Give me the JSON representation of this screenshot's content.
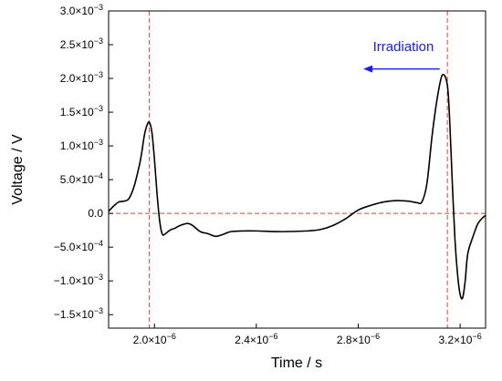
{
  "chart_data": {
    "type": "line",
    "xlabel": "Time / s",
    "ylabel": "Voltage / V",
    "xlim": [
      1.82e-06,
      3.3e-06
    ],
    "ylim": [
      -0.0017,
      0.003
    ],
    "x_ticks": [
      {
        "value": 2e-06,
        "mantissa": "2.0",
        "exponent": "−6"
      },
      {
        "value": 2.4e-06,
        "mantissa": "2.4",
        "exponent": "−6"
      },
      {
        "value": 2.8e-06,
        "mantissa": "2.8",
        "exponent": "−6"
      },
      {
        "value": 3.2e-06,
        "mantissa": "3.2",
        "exponent": "−6"
      }
    ],
    "y_ticks": [
      {
        "value": 0.003,
        "mantissa": "3.0",
        "exponent": "−3"
      },
      {
        "value": 0.0025,
        "mantissa": "2.5",
        "exponent": "−3"
      },
      {
        "value": 0.002,
        "mantissa": "2.0",
        "exponent": "−3"
      },
      {
        "value": 0.0015,
        "mantissa": "1.5",
        "exponent": "−3"
      },
      {
        "value": 0.001,
        "mantissa": "1.0",
        "exponent": "−3"
      },
      {
        "value": 0.0005,
        "mantissa": "5.0",
        "exponent": "−4"
      },
      {
        "value": 0,
        "mantissa": "0.0",
        "exponent": ""
      },
      {
        "value": -0.0005,
        "mantissa": "−5.0",
        "exponent": "−4"
      },
      {
        "value": -0.001,
        "mantissa": "−1.0",
        "exponent": "−3"
      },
      {
        "value": -0.0015,
        "mantissa": "−1.5",
        "exponent": "−3"
      }
    ],
    "reference_lines": {
      "vertical": [
        1.98e-06,
        3.15e-06
      ],
      "horizontal": [
        0
      ],
      "color": "#e03c3c",
      "style": "dashed"
    },
    "annotation": {
      "text": "Irradiation",
      "color": "#1a1aff",
      "arrow_direction": "left",
      "arrow_from": {
        "x": 3.12e-06,
        "y": 0.00214
      },
      "arrow_to": {
        "x": 2.82e-06,
        "y": 0.00214
      },
      "text_anchor": {
        "x": 2.87e-06,
        "y": 0.00247
      }
    },
    "grid": false,
    "series": [
      {
        "color": "#000000",
        "x": [
          1.82e-06,
          1.84e-06,
          1.86e-06,
          1.88e-06,
          1.9e-06,
          1.92e-06,
          1.94e-06,
          1.95e-06,
          1.96e-06,
          1.97e-06,
          1.98e-06,
          1.99e-06,
          2e-06,
          2.01e-06,
          2.02e-06,
          2.03e-06,
          2.04e-06,
          2.06e-06,
          2.08e-06,
          2.1e-06,
          2.13e-06,
          2.15e-06,
          2.18e-06,
          2.21e-06,
          2.24e-06,
          2.27e-06,
          2.3e-06,
          2.35e-06,
          2.4e-06,
          2.5e-06,
          2.6e-06,
          2.65e-06,
          2.7e-06,
          2.75e-06,
          2.8e-06,
          2.85e-06,
          2.9e-06,
          2.95e-06,
          3e-06,
          3.03e-06,
          3.05e-06,
          3.07e-06,
          3.09e-06,
          3.11e-06,
          3.13e-06,
          3.15e-06,
          3.16e-06,
          3.17e-06,
          3.18e-06,
          3.19e-06,
          3.2e-06,
          3.21e-06,
          3.22e-06,
          3.23e-06,
          3.25e-06,
          3.27e-06,
          3.29e-06,
          3.3e-06
        ],
        "y": [
          3e-05,
          0.00011,
          0.00017,
          0.00018,
          0.00022,
          0.0004,
          0.0007,
          0.0009,
          0.00115,
          0.0013,
          0.00135,
          0.0012,
          0.0008,
          0.0003,
          -0.0001,
          -0.0003,
          -0.00031,
          -0.00025,
          -0.00022,
          -0.00018,
          -0.00015,
          -0.00018,
          -0.00027,
          -0.0003,
          -0.00034,
          -0.00031,
          -0.00027,
          -0.00026,
          -0.00026,
          -0.00027,
          -0.00026,
          -0.00024,
          -0.00018,
          -8e-05,
          5e-05,
          0.00012,
          0.00017,
          0.00019,
          0.00018,
          0.00016,
          0.00017,
          0.00045,
          0.00115,
          0.0017,
          0.00205,
          0.0019,
          0.0013,
          0.0004,
          -0.0004,
          -0.0009,
          -0.0012,
          -0.00125,
          -0.001,
          -0.0006,
          -0.00035,
          -0.00015,
          -6e-05,
          -3e-05
        ]
      }
    ]
  }
}
